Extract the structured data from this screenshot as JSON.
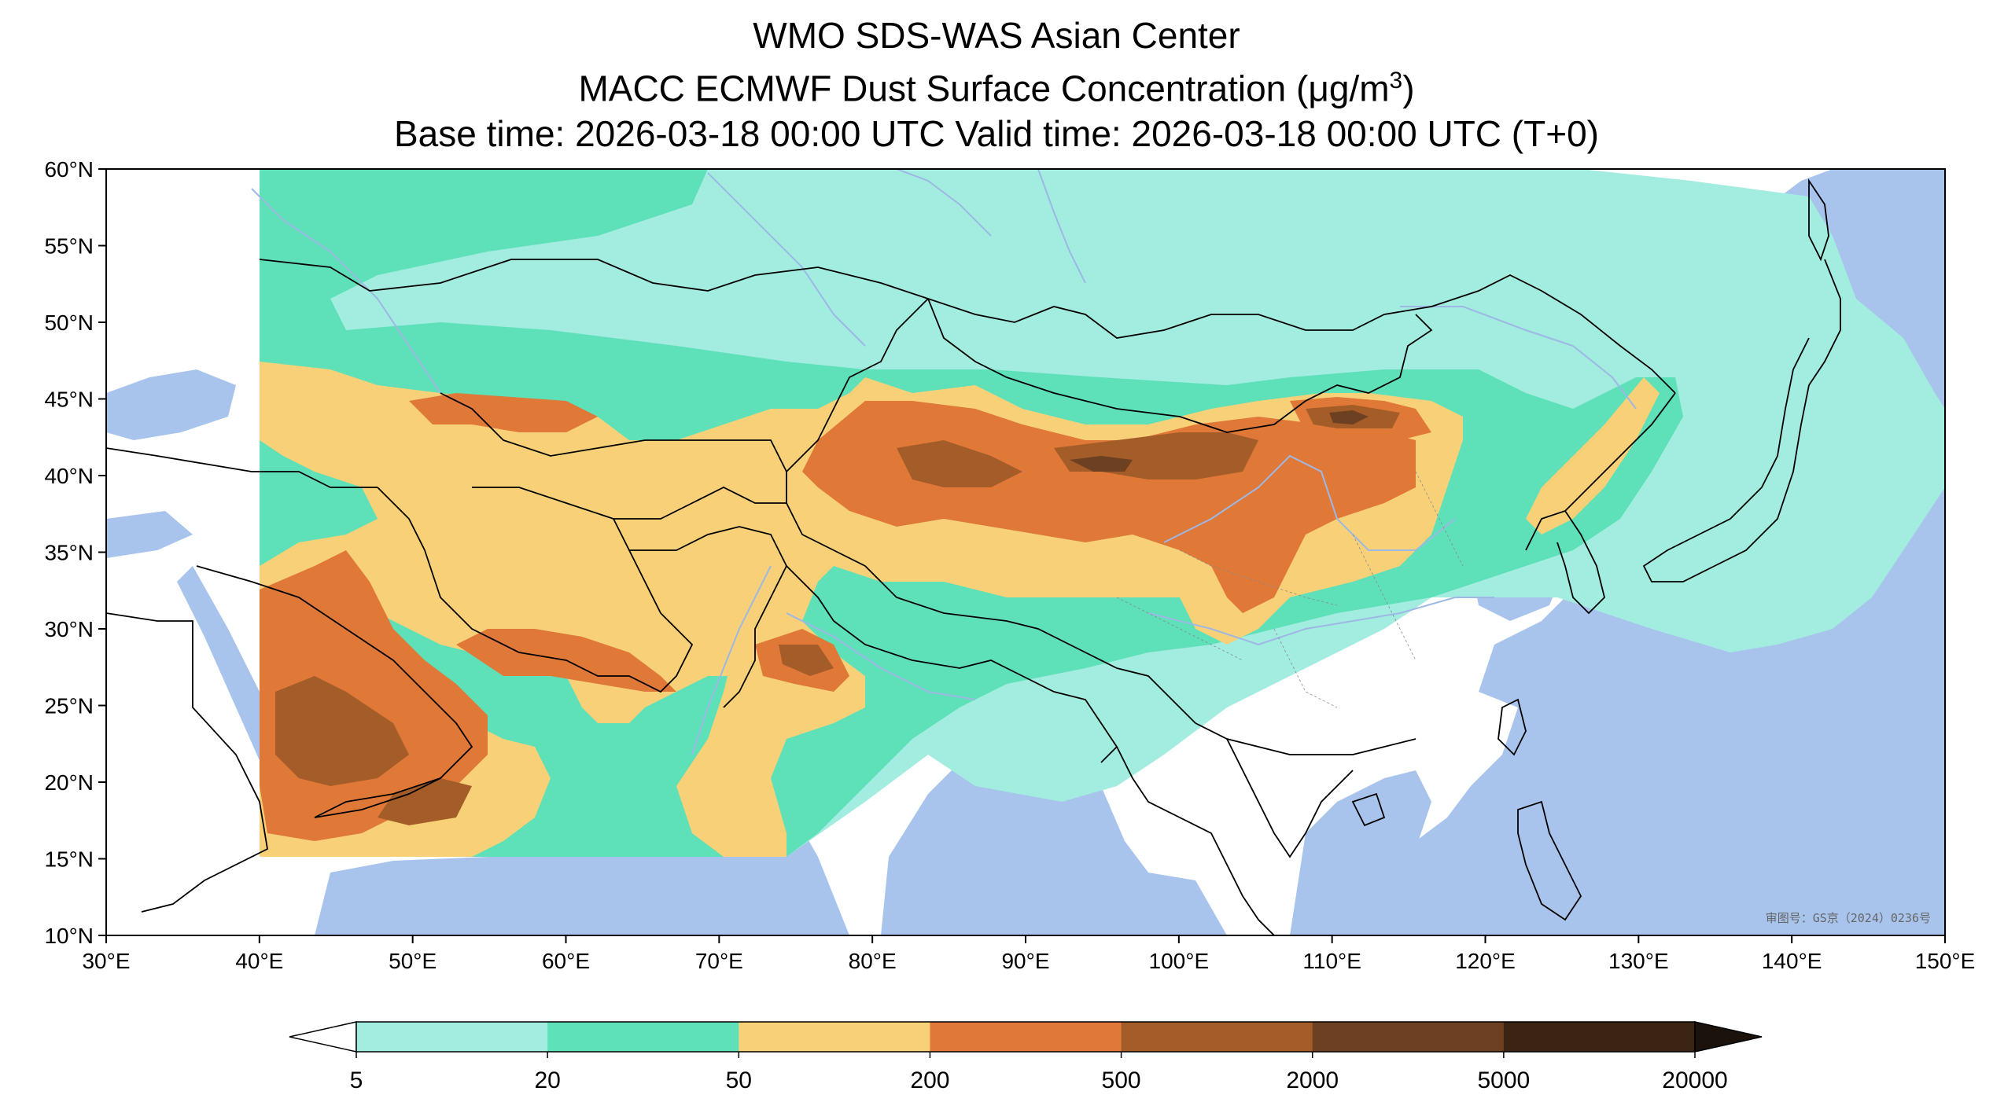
{
  "title": {
    "line1": "WMO SDS-WAS Asian Center",
    "line2_prefix": "MACC ECMWF Dust Surface Concentration (",
    "line2_unit_mu": "μ",
    "line2_unit_rest": "g/m",
    "line2_unit_exp": "3",
    "line2_suffix": ")",
    "line3": "Base time: 2026-03-18 00:00 UTC Valid time: 2026-03-18 00:00 UTC (T+0)"
  },
  "map": {
    "lon_range": [
      30,
      150
    ],
    "lat_range": [
      10,
      60
    ],
    "x_ticks": [
      {
        "lon": 30,
        "label": "30°E"
      },
      {
        "lon": 40,
        "label": "40°E"
      },
      {
        "lon": 50,
        "label": "50°E"
      },
      {
        "lon": 60,
        "label": "60°E"
      },
      {
        "lon": 70,
        "label": "70°E"
      },
      {
        "lon": 80,
        "label": "80°E"
      },
      {
        "lon": 90,
        "label": "90°E"
      },
      {
        "lon": 100,
        "label": "100°E"
      },
      {
        "lon": 110,
        "label": "110°E"
      },
      {
        "lon": 120,
        "label": "120°E"
      },
      {
        "lon": 130,
        "label": "130°E"
      },
      {
        "lon": 140,
        "label": "140°E"
      },
      {
        "lon": 150,
        "label": "150°E"
      }
    ],
    "y_ticks": [
      {
        "lat": 60,
        "label": "60°N"
      },
      {
        "lat": 55,
        "label": "55°N"
      },
      {
        "lat": 50,
        "label": "50°N"
      },
      {
        "lat": 45,
        "label": "45°N"
      },
      {
        "lat": 40,
        "label": "40°N"
      },
      {
        "lat": 35,
        "label": "35°N"
      },
      {
        "lat": 30,
        "label": "30°N"
      },
      {
        "lat": 25,
        "label": "25°N"
      },
      {
        "lat": 20,
        "label": "20°N"
      },
      {
        "lat": 15,
        "label": "15°N"
      },
      {
        "lat": 10,
        "label": "10°N"
      }
    ],
    "model_domain": {
      "lon_min": 40,
      "lat_min": 15
    },
    "approval_stamp": "审图号：GS京（2024）0236号",
    "colors": {
      "ocean": "#a8c4ec",
      "land": "#ffffff",
      "border": "#000000",
      "river": "#9db8e4"
    }
  },
  "colorbar": {
    "levels": [
      "5",
      "20",
      "50",
      "200",
      "500",
      "2000",
      "5000",
      "20000"
    ],
    "colors": [
      "#a2ece0",
      "#5ee0b8",
      "#f8d078",
      "#e07838",
      "#a45c28",
      "#6c4020",
      "#3c2414"
    ],
    "under_color": "#ffffff",
    "over_color": "#1c120c"
  }
}
